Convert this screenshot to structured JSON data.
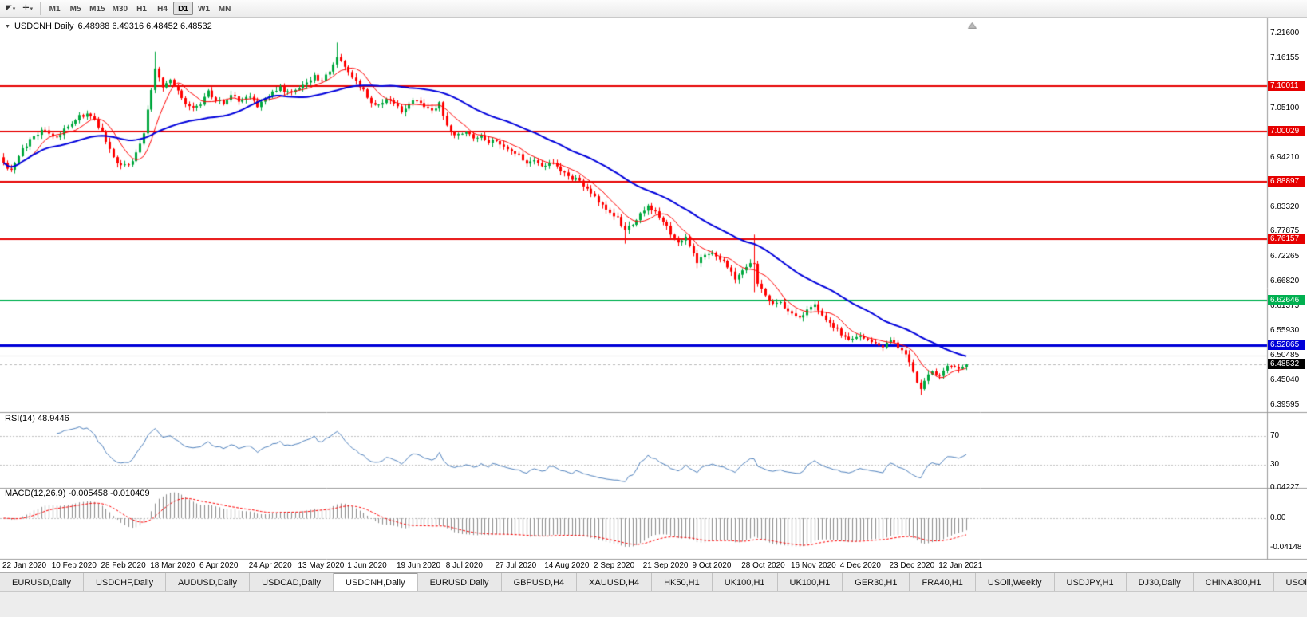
{
  "toolbar": {
    "tools": [
      {
        "name": "chart-cursor-tool",
        "glyph": "◤"
      },
      {
        "name": "crosshair-tool",
        "glyph": "✛"
      }
    ],
    "timeframes": [
      "M1",
      "M5",
      "M15",
      "M30",
      "H1",
      "H4",
      "D1",
      "W1",
      "MN"
    ],
    "active_timeframe": "D1"
  },
  "chart": {
    "caret": "▼",
    "title": "USDCNH,Daily",
    "ohlc": "6.48988 6.49316 6.48452 6.48532",
    "colors": {
      "bull": "#00a83e",
      "bear": "#ff0000",
      "ma_fast": "#ff0000",
      "ma_slow": "#0000dc",
      "rsi_line": "#4f81bd",
      "macd_hist": "#8c8c8c",
      "macd_signal": "#ff0000"
    }
  },
  "price_axis": {
    "labels": [
      {
        "text": "7.21600",
        "price": 7.216
      },
      {
        "text": "7.16155",
        "price": 7.16155
      },
      {
        "text": "7.05100",
        "price": 7.051
      },
      {
        "text": "6.94210",
        "price": 6.9421
      },
      {
        "text": "6.83320",
        "price": 6.8332
      },
      {
        "text": "6.77875",
        "price": 6.77875
      },
      {
        "text": "6.72265",
        "price": 6.72265
      },
      {
        "text": "6.66820",
        "price": 6.6682
      },
      {
        "text": "6.61375",
        "price": 6.61375
      },
      {
        "text": "6.55930",
        "price": 6.5593
      },
      {
        "text": "6.50485",
        "price": 6.50485
      },
      {
        "text": "6.45040",
        "price": 6.4504
      },
      {
        "text": "6.39595",
        "price": 6.39595
      }
    ],
    "badges": [
      {
        "text": "7.10011",
        "price": 7.10011,
        "color": "#e60000",
        "name": "resistance-badge-1"
      },
      {
        "text": "7.00029",
        "price": 7.00029,
        "color": "#e60000",
        "name": "resistance-badge-2"
      },
      {
        "text": "6.88897",
        "price": 6.88897,
        "color": "#e60000",
        "name": "resistance-badge-3"
      },
      {
        "text": "6.76157",
        "price": 6.76157,
        "color": "#e60000",
        "name": "resistance-badge-4"
      },
      {
        "text": "6.62646",
        "price": 6.62646,
        "color": "#00b050",
        "name": "support-badge-green"
      },
      {
        "text": "6.52865",
        "price": 6.52865,
        "color": "#0000d8",
        "name": "support-badge-blue"
      },
      {
        "text": "6.48532",
        "price": 6.48532,
        "color": "#000000",
        "name": "current-price-badge"
      }
    ]
  },
  "indicators": {
    "rsi": {
      "label": "RSI(14) 48.9446",
      "period": 14,
      "value": 48.9446,
      "axis": [
        {
          "text": "70",
          "value": 70
        },
        {
          "text": "30",
          "value": 30
        }
      ]
    },
    "macd": {
      "label": "MACD(12,26,9) -0.005458 -0.010409",
      "fast": 12,
      "slow": 26,
      "signal": 9,
      "value": -0.005458,
      "signal_value": -0.010409,
      "axis": [
        {
          "text": "0.04227",
          "value": 0.04227
        },
        {
          "text": "0.00",
          "value": 0
        },
        {
          "text": "-0.04148",
          "value": -0.04148
        }
      ]
    }
  },
  "date_axis": [
    {
      "i": 0,
      "text": "22 Jan 2020"
    },
    {
      "i": 13,
      "text": "10 Feb 2020"
    },
    {
      "i": 26,
      "text": "28 Feb 2020"
    },
    {
      "i": 39,
      "text": "18 Mar 2020"
    },
    {
      "i": 52,
      "text": "6 Apr 2020"
    },
    {
      "i": 65,
      "text": "24 Apr 2020"
    },
    {
      "i": 78,
      "text": "13 May 2020"
    },
    {
      "i": 91,
      "text": "1 Jun 2020"
    },
    {
      "i": 104,
      "text": "19 Jun 2020"
    },
    {
      "i": 117,
      "text": "8 Jul 2020"
    },
    {
      "i": 130,
      "text": "27 Jul 2020"
    },
    {
      "i": 143,
      "text": "14 Aug 2020"
    },
    {
      "i": 156,
      "text": "2 Sep 2020"
    },
    {
      "i": 169,
      "text": "21 Sep 2020"
    },
    {
      "i": 182,
      "text": "9 Oct 2020"
    },
    {
      "i": 195,
      "text": "28 Oct 2020"
    },
    {
      "i": 208,
      "text": "16 Nov 2020"
    },
    {
      "i": 221,
      "text": "4 Dec 2020"
    },
    {
      "i": 234,
      "text": "23 Dec 2020"
    },
    {
      "i": 247,
      "text": "12 Jan 2021"
    }
  ],
  "tabs": [
    "EURUSD,Daily",
    "USDCHF,Daily",
    "AUDUSD,Daily",
    "USDCAD,Daily",
    "USDCNH,Daily",
    "EURUSD,Daily",
    "GBPUSD,H4",
    "XAUUSD,H4",
    "HK50,H1",
    "UK100,H1",
    "UK100,H1",
    "GER30,H1",
    "FRA40,H1",
    "USOil,Weekly",
    "USDJPY,H1",
    "DJ30,Daily",
    "CHINA300,H1",
    "USOil,"
  ],
  "active_tab_index": 4,
  "chart_data": {
    "type": "candlestick",
    "symbol": "USDCNH",
    "timeframe": "Daily",
    "open": 6.48988,
    "high": 6.49316,
    "low": 6.48452,
    "close": 6.48532,
    "y_axis": {
      "min": 6.39595,
      "max": 7.216
    },
    "x_range": [
      "22 Jan 2020",
      "15 Jan 2021"
    ],
    "bars": 255,
    "horizontal_lines": [
      {
        "price": 7.10011,
        "color": "#e60000",
        "width": 2,
        "role": "resistance"
      },
      {
        "price": 7.00029,
        "color": "#e60000",
        "width": 2,
        "role": "resistance"
      },
      {
        "price": 6.88897,
        "color": "#e60000",
        "width": 2,
        "role": "resistance"
      },
      {
        "price": 6.76157,
        "color": "#e60000",
        "width": 2,
        "role": "resistance"
      },
      {
        "price": 6.62646,
        "color": "#00b050",
        "width": 2,
        "role": "support"
      },
      {
        "price": 6.52865,
        "color": "#0000d8",
        "width": 3,
        "role": "support"
      },
      {
        "price": 6.50485,
        "color": "#dcdcdc",
        "width": 1,
        "role": "grid"
      },
      {
        "price": 6.48532,
        "color": "#b8b8b8",
        "width": 1,
        "dash": [
          3,
          3
        ],
        "role": "current-price"
      }
    ],
    "ma_fast_period": 8,
    "ma_slow_period": 34,
    "anchors": [
      [
        0,
        6.93
      ],
      [
        2,
        6.912
      ],
      [
        5,
        6.96
      ],
      [
        8,
        6.992
      ],
      [
        11,
        7.003
      ],
      [
        13,
        6.985
      ],
      [
        16,
        7.002
      ],
      [
        19,
        7.028
      ],
      [
        22,
        7.04
      ],
      [
        24,
        7.022
      ],
      [
        26,
        7.0
      ],
      [
        28,
        6.962
      ],
      [
        30,
        6.93
      ],
      [
        33,
        6.925
      ],
      [
        35,
        6.95
      ],
      [
        37,
        7.0
      ],
      [
        39,
        7.09
      ],
      [
        40,
        7.14
      ],
      [
        42,
        7.1
      ],
      [
        44,
        7.115
      ],
      [
        46,
        7.09
      ],
      [
        48,
        7.062
      ],
      [
        50,
        7.05
      ],
      [
        52,
        7.06
      ],
      [
        54,
        7.088
      ],
      [
        56,
        7.07
      ],
      [
        58,
        7.06
      ],
      [
        60,
        7.078
      ],
      [
        62,
        7.068
      ],
      [
        65,
        7.075
      ],
      [
        67,
        7.052
      ],
      [
        69,
        7.07
      ],
      [
        71,
        7.088
      ],
      [
        73,
        7.098
      ],
      [
        75,
        7.085
      ],
      [
        78,
        7.094
      ],
      [
        80,
        7.108
      ],
      [
        82,
        7.124
      ],
      [
        84,
        7.11
      ],
      [
        86,
        7.135
      ],
      [
        88,
        7.168
      ],
      [
        89,
        7.155
      ],
      [
        91,
        7.13
      ],
      [
        93,
        7.108
      ],
      [
        95,
        7.088
      ],
      [
        97,
        7.066
      ],
      [
        99,
        7.058
      ],
      [
        101,
        7.074
      ],
      [
        103,
        7.06
      ],
      [
        105,
        7.046
      ],
      [
        107,
        7.06
      ],
      [
        109,
        7.07
      ],
      [
        111,
        7.058
      ],
      [
        113,
        7.044
      ],
      [
        115,
        7.062
      ],
      [
        116,
        7.03
      ],
      [
        118,
        6.996
      ],
      [
        120,
        6.99
      ],
      [
        122,
        7.0
      ],
      [
        124,
        6.986
      ],
      [
        126,
        6.99
      ],
      [
        128,
        6.976
      ],
      [
        130,
        6.98
      ],
      [
        132,
        6.966
      ],
      [
        134,
        6.956
      ],
      [
        136,
        6.946
      ],
      [
        138,
        6.93
      ],
      [
        140,
        6.936
      ],
      [
        142,
        6.924
      ],
      [
        145,
        6.93
      ],
      [
        147,
        6.912
      ],
      [
        149,
        6.9
      ],
      [
        151,
        6.895
      ],
      [
        153,
        6.88
      ],
      [
        155,
        6.862
      ],
      [
        156,
        6.854
      ],
      [
        158,
        6.84
      ],
      [
        160,
        6.822
      ],
      [
        162,
        6.81
      ],
      [
        164,
        6.782
      ],
      [
        166,
        6.796
      ],
      [
        168,
        6.818
      ],
      [
        170,
        6.834
      ],
      [
        172,
        6.82
      ],
      [
        174,
        6.8
      ],
      [
        176,
        6.776
      ],
      [
        178,
        6.756
      ],
      [
        180,
        6.768
      ],
      [
        182,
        6.73
      ],
      [
        183,
        6.712
      ],
      [
        185,
        6.724
      ],
      [
        187,
        6.734
      ],
      [
        189,
        6.72
      ],
      [
        191,
        6.7
      ],
      [
        193,
        6.676
      ],
      [
        195,
        6.694
      ],
      [
        197,
        6.706
      ],
      [
        198,
        6.712
      ],
      [
        199,
        6.662
      ],
      [
        201,
        6.636
      ],
      [
        203,
        6.616
      ],
      [
        205,
        6.624
      ],
      [
        207,
        6.6
      ],
      [
        208,
        6.595
      ],
      [
        210,
        6.585
      ],
      [
        212,
        6.604
      ],
      [
        214,
        6.614
      ],
      [
        216,
        6.594
      ],
      [
        218,
        6.576
      ],
      [
        220,
        6.56
      ],
      [
        221,
        6.554
      ],
      [
        223,
        6.536
      ],
      [
        225,
        6.546
      ],
      [
        227,
        6.544
      ],
      [
        229,
        6.534
      ],
      [
        231,
        6.524
      ],
      [
        233,
        6.53
      ],
      [
        234,
        6.536
      ],
      [
        236,
        6.524
      ],
      [
        238,
        6.51
      ],
      [
        239,
        6.492
      ],
      [
        240,
        6.466
      ],
      [
        241,
        6.446
      ],
      [
        242,
        6.432
      ],
      [
        243,
        6.446
      ],
      [
        244,
        6.462
      ],
      [
        245,
        6.472
      ],
      [
        246,
        6.464
      ],
      [
        247,
        6.458
      ],
      [
        248,
        6.474
      ],
      [
        250,
        6.486
      ],
      [
        252,
        6.478
      ],
      [
        254,
        6.48532
      ]
    ],
    "spikes": [
      {
        "i": 40,
        "high": 7.176
      },
      {
        "i": 88,
        "high": 7.196
      },
      {
        "i": 164,
        "low": 6.752
      },
      {
        "i": 183,
        "low": 6.698
      },
      {
        "i": 198,
        "high": 6.772,
        "low": 6.645
      },
      {
        "i": 242,
        "low": 6.418
      }
    ]
  }
}
